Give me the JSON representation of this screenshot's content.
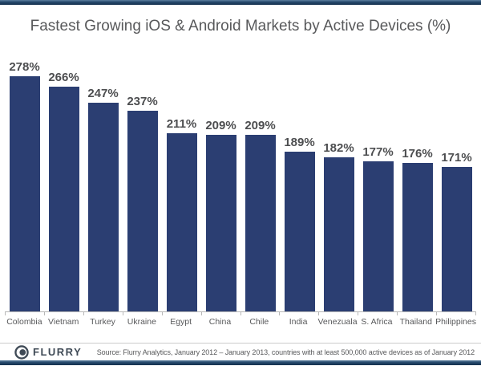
{
  "title": "Fastest Growing iOS & Android Markets by Active Devices (%)",
  "chart_data": {
    "type": "bar",
    "title": "Fastest Growing iOS & Android Markets by Active Devices (%)",
    "categories": [
      "Colombia",
      "Vietnam",
      "Turkey",
      "Ukraine",
      "Egypt",
      "China",
      "Chile",
      "India",
      "Venezuala",
      "S. Africa",
      "Thailand",
      "Philippines"
    ],
    "values": [
      278,
      266,
      247,
      237,
      211,
      209,
      209,
      189,
      182,
      177,
      176,
      171
    ],
    "value_labels": [
      "278%",
      "266%",
      "247%",
      "237%",
      "211%",
      "209%",
      "209%",
      "189%",
      "182%",
      "177%",
      "176%",
      "171%"
    ],
    "xlabel": "",
    "ylabel": "",
    "ylim": [
      0,
      300
    ],
    "grid": false,
    "legend": false,
    "bar_color": "#2b3e72"
  },
  "footer": {
    "logo_text": "FLURRY",
    "source": "Source: Flurry Analytics, January 2012 – January 2013, countries with at least 500,000 active devices as of January 2012"
  },
  "colors": {
    "bar": "#2b3e72",
    "accent_strip": "#24476a",
    "title_text": "#58595b",
    "axis": "#b8b8b8",
    "logo": "#3f4a56"
  }
}
